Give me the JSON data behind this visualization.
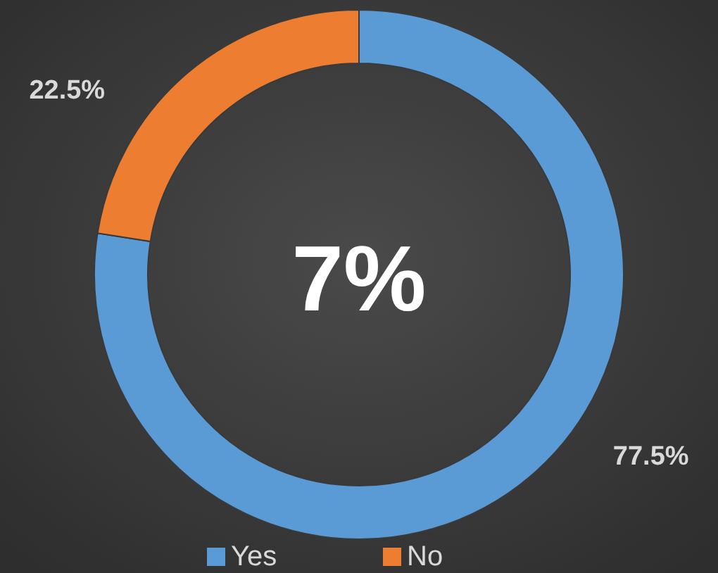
{
  "chart_data": {
    "type": "donut",
    "categories": [
      "Yes",
      "No"
    ],
    "values": [
      77.5,
      22.5
    ],
    "colors": [
      "#5b9bd5",
      "#ed7d31"
    ],
    "annotations": [
      "7%"
    ],
    "legend": "bottom",
    "value_labels": [
      "77.5%",
      "22.5%"
    ]
  }
}
